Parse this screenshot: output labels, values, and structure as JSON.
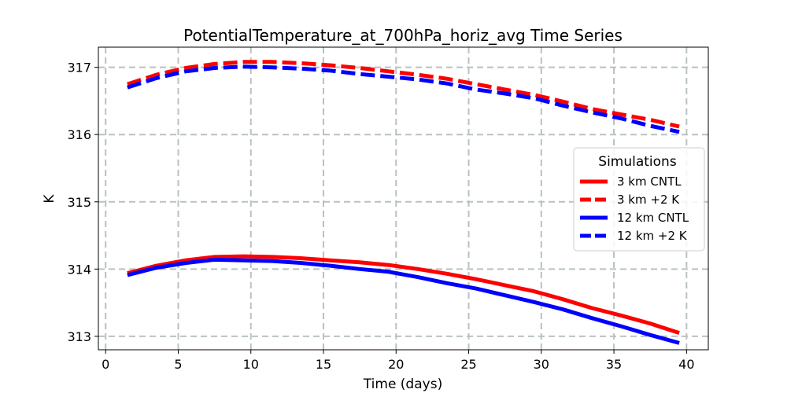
{
  "chart_data": {
    "type": "line",
    "title": "PotentialTemperature_at_700hPa_horiz_avg Time Series",
    "xlabel": "Time (days)",
    "ylabel": "K",
    "xlim": [
      -0.5,
      41.5
    ],
    "ylim": [
      312.8,
      317.3
    ],
    "xticks": [
      0,
      5,
      10,
      15,
      20,
      25,
      30,
      35,
      40
    ],
    "yticks": [
      313,
      314,
      315,
      316,
      317
    ],
    "grid": true,
    "legend": {
      "title": "Simulations",
      "position": "center-right"
    },
    "series": [
      {
        "name": "3 km CNTL",
        "color": "#ff0000",
        "dash": "solid",
        "x": [
          1.5,
          3.5,
          5.5,
          7.5,
          9.5,
          11.5,
          13.5,
          15.5,
          17.5,
          19.5,
          21.5,
          23.5,
          25.5,
          27.5,
          29.5,
          31.5,
          33.5,
          35.5,
          37.5,
          39.5
        ],
        "y": [
          313.94,
          314.05,
          314.13,
          314.18,
          314.19,
          314.18,
          314.16,
          314.13,
          314.1,
          314.06,
          314.0,
          313.93,
          313.85,
          313.76,
          313.67,
          313.55,
          313.42,
          313.31,
          313.19,
          313.05
        ]
      },
      {
        "name": "3 km +2 K",
        "color": "#ff0000",
        "dash": "dashed",
        "x": [
          1.5,
          3.5,
          5.5,
          7.5,
          9.5,
          11.5,
          13.5,
          15.5,
          17.5,
          19.5,
          21.5,
          23.5,
          25.5,
          27.5,
          29.5,
          31.5,
          33.5,
          35.5,
          37.5,
          39.5
        ],
        "y": [
          316.75,
          316.89,
          316.99,
          317.05,
          317.08,
          317.08,
          317.06,
          317.03,
          316.99,
          316.94,
          316.89,
          316.83,
          316.75,
          316.67,
          316.59,
          316.49,
          316.38,
          316.3,
          316.22,
          316.12
        ]
      },
      {
        "name": "12 km CNTL",
        "color": "#0000ff",
        "dash": "solid",
        "x": [
          1.5,
          3.5,
          5.5,
          7.5,
          9.5,
          11.5,
          13.5,
          15.5,
          17.5,
          19.5,
          21.5,
          23.5,
          25.5,
          27.5,
          29.5,
          31.5,
          33.5,
          35.5,
          37.5,
          39.5
        ],
        "y": [
          313.91,
          314.02,
          314.09,
          314.14,
          314.13,
          314.12,
          314.09,
          314.05,
          314.0,
          313.96,
          313.88,
          313.79,
          313.71,
          313.61,
          313.51,
          313.4,
          313.27,
          313.15,
          313.02,
          312.9
        ]
      },
      {
        "name": "12 km +2 K",
        "color": "#0000ff",
        "dash": "dashed",
        "x": [
          1.5,
          3.5,
          5.5,
          7.5,
          9.5,
          11.5,
          13.5,
          15.5,
          17.5,
          19.5,
          21.5,
          23.5,
          25.5,
          27.5,
          29.5,
          31.5,
          33.5,
          35.5,
          37.5,
          39.5
        ],
        "y": [
          316.7,
          316.84,
          316.94,
          316.99,
          317.01,
          317.0,
          316.98,
          316.95,
          316.9,
          316.86,
          316.82,
          316.76,
          316.67,
          316.61,
          316.54,
          316.43,
          316.33,
          316.24,
          316.13,
          316.04
        ]
      }
    ]
  }
}
